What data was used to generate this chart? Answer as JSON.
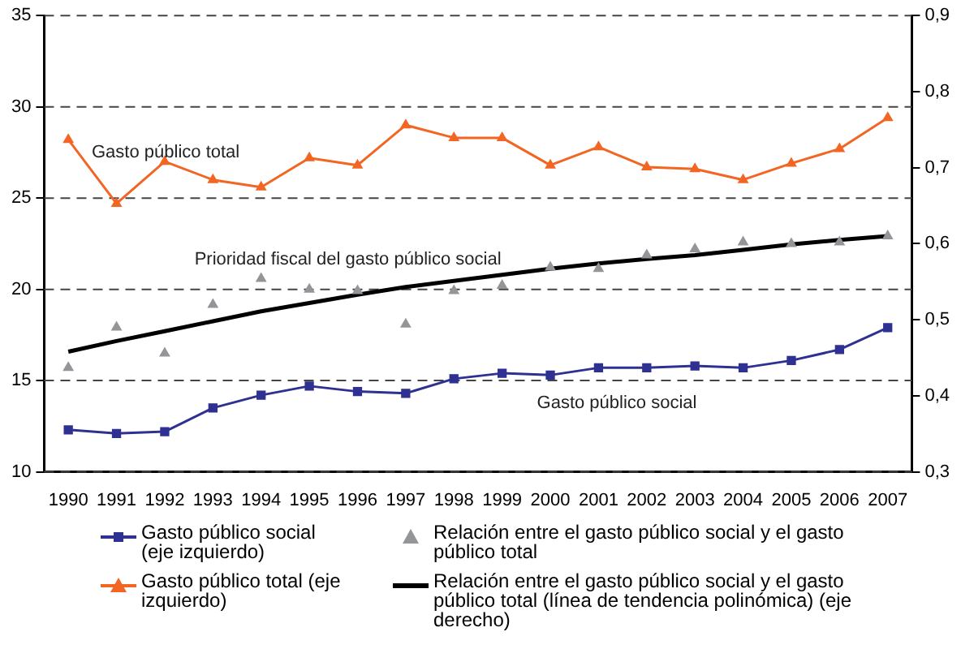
{
  "chart_data": {
    "type": "line",
    "categories": [
      "1990",
      "1991",
      "1992",
      "1993",
      "1994",
      "1995",
      "1996",
      "1997",
      "1998",
      "1999",
      "2000",
      "2001",
      "2002",
      "2003",
      "2004",
      "2005",
      "2006",
      "2007"
    ],
    "series": [
      {
        "name": "Gasto público social (eje izquierdo)",
        "type": "line",
        "marker": "square",
        "color": "#2e3192",
        "values": [
          12.3,
          12.1,
          12.2,
          13.5,
          14.2,
          14.7,
          14.4,
          14.3,
          15.1,
          15.4,
          15.3,
          15.7,
          15.7,
          15.8,
          15.7,
          16.1,
          16.7,
          17.9
        ]
      },
      {
        "name": "Gasto público total (eje izquierdo)",
        "type": "line",
        "marker": "triangle",
        "color": "#f26522",
        "values": [
          28.2,
          24.7,
          27.0,
          26.0,
          25.6,
          27.2,
          26.8,
          29.0,
          28.3,
          28.3,
          26.8,
          27.8,
          26.7,
          26.6,
          26.0,
          26.9,
          27.7,
          29.4
        ]
      },
      {
        "name": "Relación entre el gasto público social y el gasto público total",
        "type": "scatter",
        "marker": "triangle",
        "axis": "y2",
        "color": "#939598",
        "values": [
          0.437,
          0.49,
          0.456,
          0.52,
          0.554,
          0.54,
          0.538,
          0.494,
          0.538,
          0.545,
          0.569,
          0.567,
          0.585,
          0.593,
          0.602,
          0.6,
          0.602,
          0.61
        ]
      },
      {
        "name": "Relación entre el gasto público social y el gasto público total (línea de tendencia polinómica) (eje derecho)",
        "type": "line",
        "marker": "none",
        "axis": "y2",
        "color": "#000000",
        "values": [
          0.458,
          0.472,
          0.485,
          0.498,
          0.511,
          0.522,
          0.533,
          0.543,
          0.551,
          0.559,
          0.567,
          0.574,
          0.58,
          0.585,
          0.592,
          0.599,
          0.605,
          0.61
        ]
      }
    ],
    "ylim": [
      10,
      35
    ],
    "yticks": [
      10,
      15,
      20,
      25,
      30,
      35
    ],
    "y2lim": [
      0.3,
      0.9
    ],
    "y2ticks": [
      {
        "value": 0.3,
        "label": "0,3"
      },
      {
        "value": 0.4,
        "label": "0,4"
      },
      {
        "value": 0.5,
        "label": "0,5"
      },
      {
        "value": 0.6,
        "label": "0,6"
      },
      {
        "value": 0.7,
        "label": "0,7"
      },
      {
        "value": 0.8,
        "label": "0,8"
      },
      {
        "value": 0.9,
        "label": "0,9"
      }
    ],
    "grid": "y",
    "legend": "bottom",
    "annotations": [
      "Gasto público total",
      "Prioridad fiscal del gasto público social",
      "Gasto público social"
    ]
  }
}
